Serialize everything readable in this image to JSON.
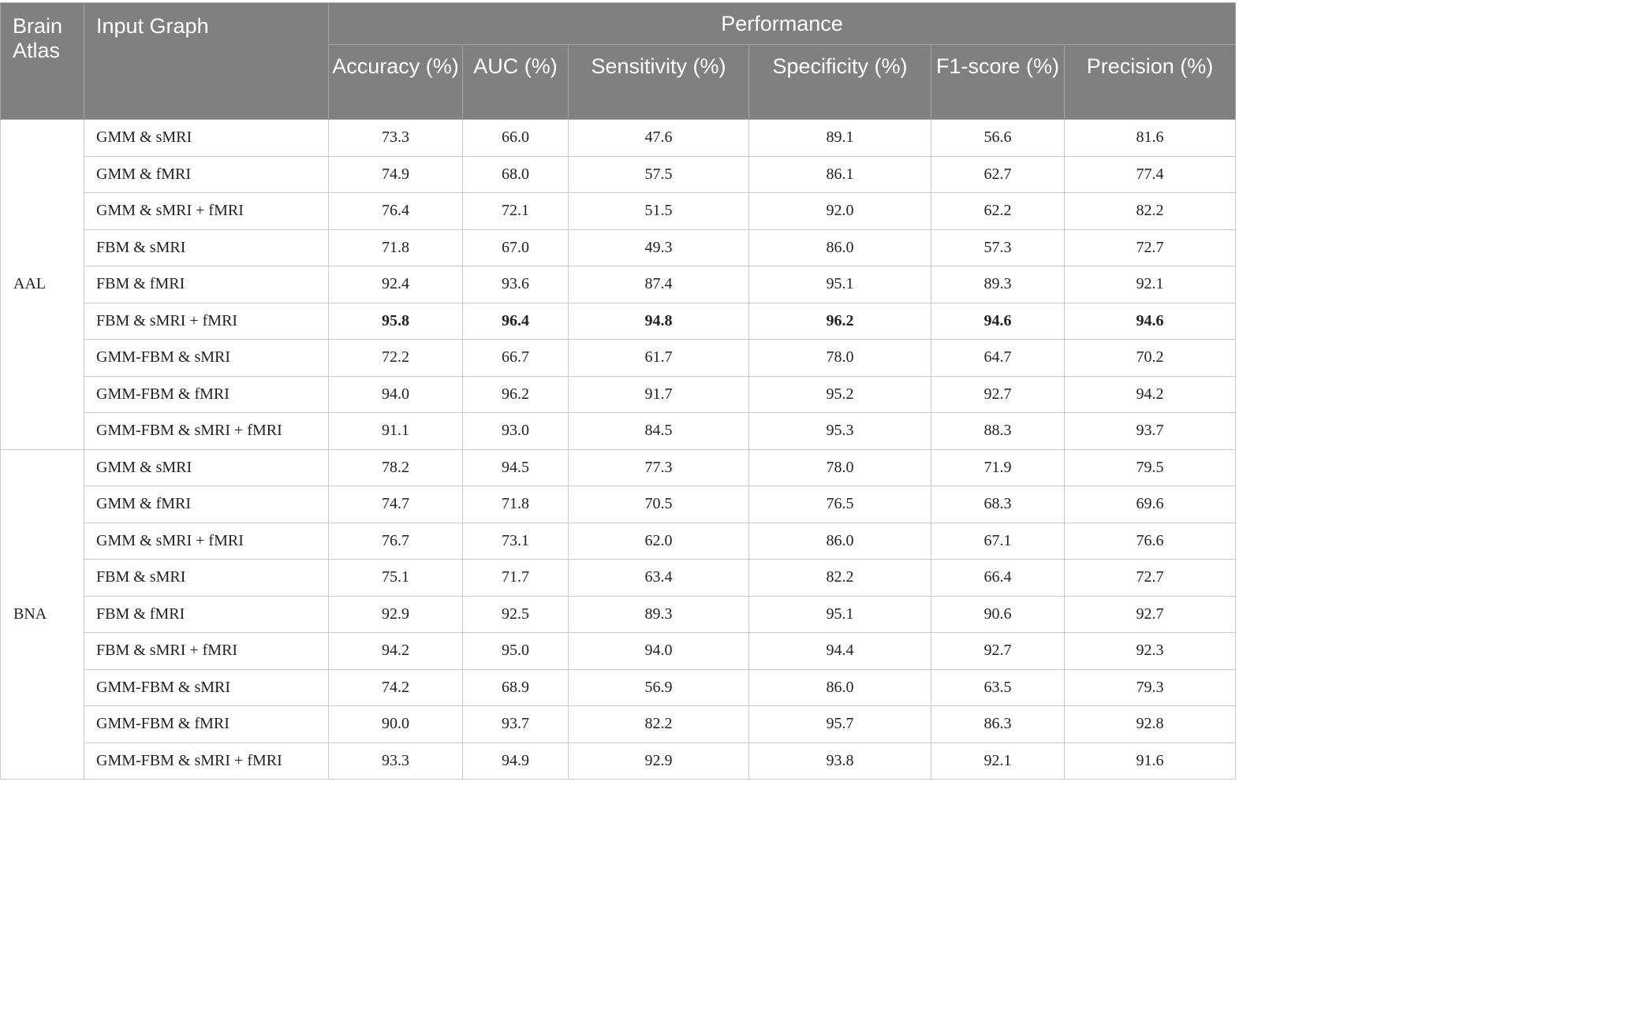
{
  "header": {
    "brain_atlas": "Brain Atlas",
    "input_graph": "Input Graph",
    "performance": "Performance",
    "metrics": [
      "Accuracy (%)",
      "AUC (%)",
      "Sensitivity (%)",
      "Specificity (%)",
      "F1-score (%)",
      "Precision (%)"
    ]
  },
  "groups": [
    {
      "atlas": "AAL",
      "rows": [
        {
          "graph": "GMM & sMRI",
          "values": [
            "73.3",
            "66.0",
            "47.6",
            "89.1",
            "56.6",
            "81.6"
          ],
          "bold": false
        },
        {
          "graph": "GMM & fMRI",
          "values": [
            "74.9",
            "68.0",
            "57.5",
            "86.1",
            "62.7",
            "77.4"
          ],
          "bold": false
        },
        {
          "graph": "GMM & sMRI + fMRI",
          "values": [
            "76.4",
            "72.1",
            "51.5",
            "92.0",
            "62.2",
            "82.2"
          ],
          "bold": false
        },
        {
          "graph": "FBM & sMRI",
          "values": [
            "71.8",
            "67.0",
            "49.3",
            "86.0",
            "57.3",
            "72.7"
          ],
          "bold": false
        },
        {
          "graph": "FBM & fMRI",
          "values": [
            "92.4",
            "93.6",
            "87.4",
            "95.1",
            "89.3",
            "92.1"
          ],
          "bold": false
        },
        {
          "graph": "FBM & sMRI + fMRI",
          "values": [
            "95.8",
            "96.4",
            "94.8",
            "96.2",
            "94.6",
            "94.6"
          ],
          "bold": true
        },
        {
          "graph": "GMM-FBM & sMRI",
          "values": [
            "72.2",
            "66.7",
            "61.7",
            "78.0",
            "64.7",
            "70.2"
          ],
          "bold": false
        },
        {
          "graph": "GMM-FBM & fMRI",
          "values": [
            "94.0",
            "96.2",
            "91.7",
            "95.2",
            "92.7",
            "94.2"
          ],
          "bold": false
        },
        {
          "graph": "GMM-FBM & sMRI + fMRI",
          "values": [
            "91.1",
            "93.0",
            "84.5",
            "95.3",
            "88.3",
            "93.7"
          ],
          "bold": false
        }
      ]
    },
    {
      "atlas": "BNA",
      "rows": [
        {
          "graph": "GMM & sMRI",
          "values": [
            "78.2",
            "94.5",
            "77.3",
            "78.0",
            "71.9",
            "79.5"
          ],
          "bold": false
        },
        {
          "graph": "GMM & fMRI",
          "values": [
            "74.7",
            "71.8",
            "70.5",
            "76.5",
            "68.3",
            "69.6"
          ],
          "bold": false
        },
        {
          "graph": "GMM & sMRI + fMRI",
          "values": [
            "76.7",
            "73.1",
            "62.0",
            "86.0",
            "67.1",
            "76.6"
          ],
          "bold": false
        },
        {
          "graph": "FBM & sMRI",
          "values": [
            "75.1",
            "71.7",
            "63.4",
            "82.2",
            "66.4",
            "72.7"
          ],
          "bold": false
        },
        {
          "graph": "FBM & fMRI",
          "values": [
            "92.9",
            "92.5",
            "89.3",
            "95.1",
            "90.6",
            "92.7"
          ],
          "bold": false
        },
        {
          "graph": "FBM & sMRI + fMRI",
          "values": [
            "94.2",
            "95.0",
            "94.0",
            "94.4",
            "92.7",
            "92.3"
          ],
          "bold": false
        },
        {
          "graph": "GMM-FBM & sMRI",
          "values": [
            "74.2",
            "68.9",
            "56.9",
            "86.0",
            "63.5",
            "79.3"
          ],
          "bold": false
        },
        {
          "graph": "GMM-FBM & fMRI",
          "values": [
            "90.0",
            "93.7",
            "82.2",
            "95.7",
            "86.3",
            "92.8"
          ],
          "bold": false
        },
        {
          "graph": "GMM-FBM & sMRI + fMRI",
          "values": [
            "93.3",
            "94.9",
            "92.9",
            "93.8",
            "92.1",
            "91.6"
          ],
          "bold": false
        }
      ]
    }
  ]
}
